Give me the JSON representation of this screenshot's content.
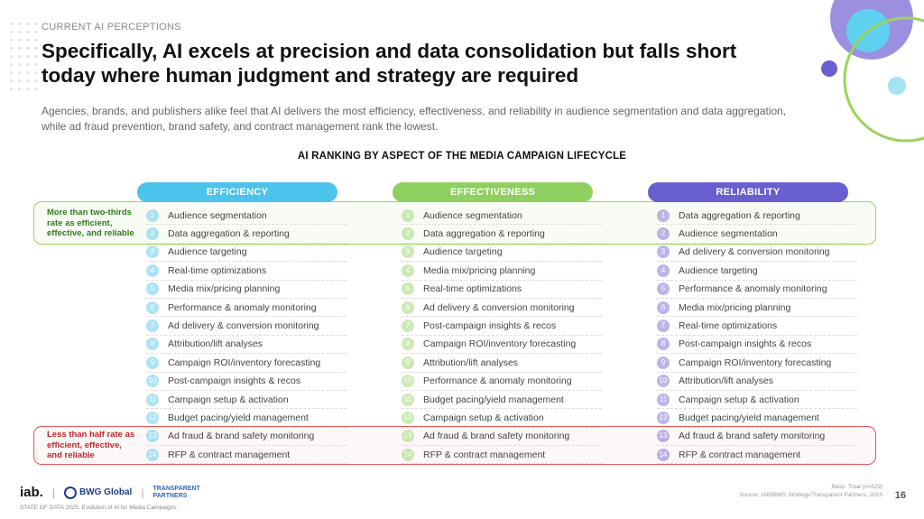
{
  "eyebrow": "CURRENT AI PERCEPTIONS",
  "title": "Specifically, AI excels at precision and data consolidation but falls short today where human judgment and strategy are required",
  "subtitle": "Agencies, brands, and publishers alike feel that AI delivers the most efficiency, effectiveness, and reliability in audience segmentation and data aggregation, while ad fraud prevention, brand safety, and contract management rank the lowest.",
  "chart_title": "AI RANKING BY ASPECT OF THE MEDIA CAMPAIGN LIFECYCLE",
  "band_top_label": "More than two-thirds rate as efficient, effective, and reliable",
  "band_bottom_label": "Less than half rate as efficient, effective, and reliable",
  "colors": {
    "efficiency": "#4cc3ec",
    "effectiveness": "#8fd160",
    "reliability": "#6a5fcf"
  },
  "columns": [
    {
      "header": "EFFICIENCY",
      "key": "efficiency",
      "items": [
        {
          "rank": "1",
          "label": "Audience segmentation"
        },
        {
          "rank": "2",
          "label": "Data aggregation & reporting"
        },
        {
          "rank": "3",
          "label": "Audience targeting"
        },
        {
          "rank": "4",
          "label": "Real-time optimizations"
        },
        {
          "rank": "5",
          "label": "Media mix/pricing planning"
        },
        {
          "rank": "6",
          "label": "Performance & anomaly monitoring"
        },
        {
          "rank": "7",
          "label": "Ad delivery & conversion monitoring"
        },
        {
          "rank": "8",
          "label": "Attribution/lift analyses"
        },
        {
          "rank": "9",
          "label": "Campaign ROI/inventory forecasting"
        },
        {
          "rank": "10",
          "label": "Post-campaign insights & recos"
        },
        {
          "rank": "11",
          "label": "Campaign setup & activation"
        },
        {
          "rank": "12",
          "label": "Budget pacing/yield management"
        },
        {
          "rank": "13",
          "label": "Ad fraud & brand safety monitoring"
        },
        {
          "rank": "14",
          "label": "RFP & contract management"
        }
      ]
    },
    {
      "header": "EFFECTIVENESS",
      "key": "effectiveness",
      "items": [
        {
          "rank": "1",
          "label": "Audience segmentation"
        },
        {
          "rank": "2",
          "label": "Data aggregation & reporting"
        },
        {
          "rank": "3",
          "label": "Audience targeting"
        },
        {
          "rank": "4",
          "label": "Media mix/pricing planning"
        },
        {
          "rank": "5",
          "label": "Real-time optimizations"
        },
        {
          "rank": "6",
          "label": "Ad delivery & conversion monitoring"
        },
        {
          "rank": "7",
          "label": "Post-campaign insights & recos"
        },
        {
          "rank": "8",
          "label": "Campaign ROI/inventory forecasting"
        },
        {
          "rank": "9",
          "label": "Attribution/lift analyses"
        },
        {
          "rank": "10",
          "label": "Performance & anomaly monitoring"
        },
        {
          "rank": "11",
          "label": "Budget pacing/yield management"
        },
        {
          "rank": "12",
          "label": "Campaign setup & activation"
        },
        {
          "rank": "13",
          "label": "Ad fraud & brand safety monitoring"
        },
        {
          "rank": "14",
          "label": "RFP & contract management"
        }
      ]
    },
    {
      "header": "RELIABILITY",
      "key": "reliability",
      "items": [
        {
          "rank": "1",
          "label": "Data aggregation & reporting"
        },
        {
          "rank": "2",
          "label": "Audience segmentation"
        },
        {
          "rank": "3",
          "label": "Ad delivery & conversion monitoring"
        },
        {
          "rank": "4",
          "label": "Audience targeting"
        },
        {
          "rank": "5",
          "label": "Performance & anomaly monitoring"
        },
        {
          "rank": "6",
          "label": "Media mix/pricing planning"
        },
        {
          "rank": "7",
          "label": "Real-time optimizations"
        },
        {
          "rank": "8",
          "label": "Post-campaign insights & recos"
        },
        {
          "rank": "9",
          "label": "Campaign ROI/inventory forecasting"
        },
        {
          "rank": "10",
          "label": "Attribution/lift analyses"
        },
        {
          "rank": "11",
          "label": "Campaign setup & activation"
        },
        {
          "rank": "12",
          "label": "Budget pacing/yield management"
        },
        {
          "rank": "13",
          "label": "Ad fraud & brand safety monitoring"
        },
        {
          "rank": "14",
          "label": "RFP & contract management"
        }
      ]
    }
  ],
  "footer": {
    "logo_iab": "iab.",
    "logo_bwg": "BWG Global",
    "logo_tp_1": "TRANSPARENT",
    "logo_tp_2": "PARTNERS",
    "note": "STATE OF DATA 2025: Evolution of AI for Media Campaigns",
    "base": "Base: Total (n=529)",
    "source": "Source: IAB/BWG Strategy/Transparent Partners, 2025",
    "page": "16"
  }
}
